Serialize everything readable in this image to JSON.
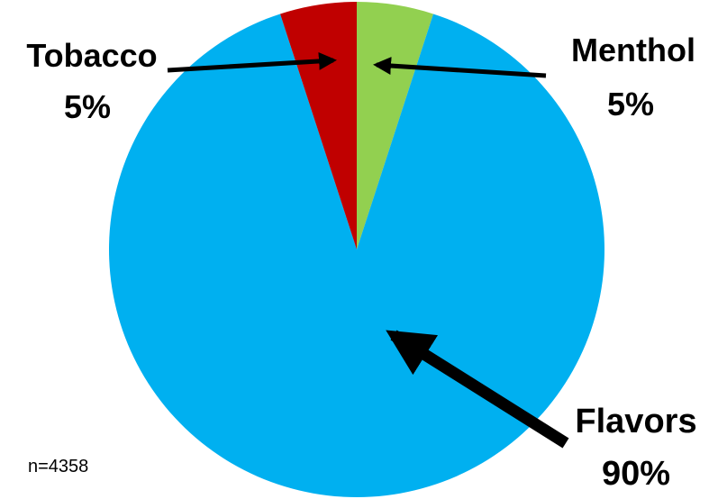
{
  "chart_data": {
    "type": "pie",
    "title": "",
    "slices": [
      {
        "label": "Menthol",
        "value": 5,
        "value_label": "5%",
        "color": "#92d050"
      },
      {
        "label": "Flavors",
        "value": 90,
        "value_label": "90%",
        "color": "#00b0f0"
      },
      {
        "label": "Tobacco",
        "value": 5,
        "value_label": "5%",
        "color": "#c00000"
      }
    ],
    "start": "12 o'clock",
    "direction": "clockwise",
    "legend": "none",
    "annotation": "n=4358"
  }
}
